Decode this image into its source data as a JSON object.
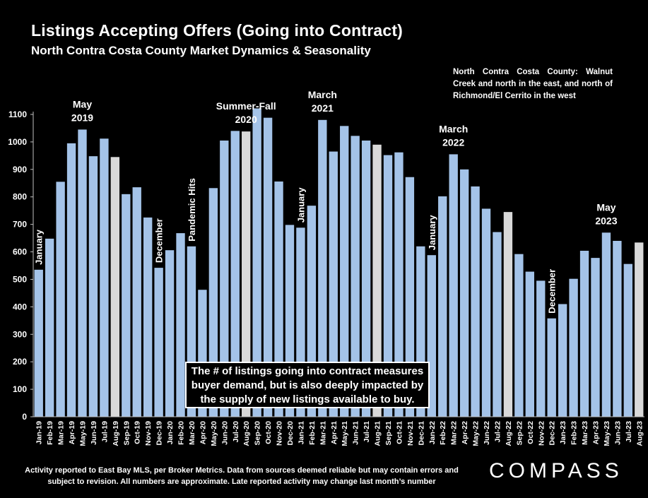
{
  "header": {
    "title": "Listings Accepting Offers (Going into Contract)",
    "subtitle": "North Contra Costa County Market Dynamics & Seasonality"
  },
  "note": "North Contra Costa County: Walnut Creek and north in the east, and north of Richmond/El Cerrito in the west",
  "callout": "The # of listings going into contract measures buyer demand, but is also deeply impacted by the supply of new listings available to buy.",
  "footer": "Activity reported to East Bay MLS, per Broker Metrics. Data from sources deemed reliable but may contain errors and subject to revision. All numbers are approximate. Late reported activity may change last month’s number",
  "logo": "COMPASS",
  "colors": {
    "bar": "#a4c3e8",
    "highlight": "#d9d9d9",
    "background": "#000000",
    "text": "#ffffff"
  },
  "chart_data": {
    "type": "bar",
    "title": "Listings Accepting Offers (Going into Contract)",
    "ylim": [
      0,
      1100
    ],
    "yticks": [
      0,
      100,
      200,
      300,
      400,
      500,
      600,
      700,
      800,
      900,
      1000,
      1100
    ],
    "grid": false,
    "categories": [
      "Jan-19",
      "Feb-19",
      "Mar-19",
      "Apr-19",
      "May-19",
      "Jun-19",
      "Jul-19",
      "Aug-19",
      "Sep-19",
      "Oct-19",
      "Nov-19",
      "Dec-19",
      "Jan-20",
      "Feb-20",
      "Mar-20",
      "Apr-20",
      "May-20",
      "Jun-20",
      "Jul-20",
      "Aug-20",
      "Sep-20",
      "Oct-20",
      "Nov-20",
      "Dec-20",
      "Jan-21",
      "Feb-21",
      "Mar-21",
      "Apr-21",
      "May-21",
      "Jun-21",
      "Jul-21",
      "Aug-21",
      "Sep-21",
      "Oct-21",
      "Nov-21",
      "Dec-21",
      "Jan-22",
      "Feb-22",
      "Mar-22",
      "Apr-22",
      "May-22",
      "Jun-22",
      "Jul-22",
      "Aug-22",
      "Sep-22",
      "Oct-22",
      "Nov-22",
      "Dec-22",
      "Jan-23",
      "Feb-23",
      "Mar-23",
      "Apr-23",
      "May-23",
      "Jun-23",
      "Jul-23",
      "Aug-23"
    ],
    "values": [
      535,
      648,
      855,
      995,
      1045,
      948,
      1012,
      945,
      810,
      835,
      725,
      542,
      606,
      668,
      620,
      462,
      832,
      1005,
      1040,
      1038,
      1122,
      1088,
      856,
      698,
      688,
      768,
      1080,
      965,
      1058,
      1022,
      1005,
      990,
      952,
      962,
      872,
      620,
      588,
      802,
      955,
      900,
      838,
      757,
      672,
      745,
      592,
      528,
      495,
      358,
      410,
      502,
      604,
      578,
      670,
      640,
      556,
      634
    ],
    "highlighted": [
      "Aug-19",
      "Aug-20",
      "Aug-21",
      "Aug-22",
      "Aug-23"
    ],
    "annotations": [
      {
        "text": "January",
        "at": "Jan-19",
        "vertical": true
      },
      {
        "text": "May\n2019",
        "at": "May-19"
      },
      {
        "text": "December",
        "at": "Dec-19",
        "vertical": true
      },
      {
        "text": "Pandemic Hits",
        "at": "Mar-20",
        "vertical": true
      },
      {
        "text": "Summer-Fall\n2020",
        "at": "Aug-20"
      },
      {
        "text": "January",
        "at": "Jan-21",
        "vertical": true
      },
      {
        "text": "March\n2021",
        "at": "Mar-21"
      },
      {
        "text": "January",
        "at": "Jan-22",
        "vertical": true
      },
      {
        "text": "March\n2022",
        "at": "Mar-22"
      },
      {
        "text": "December",
        "at": "Dec-22",
        "vertical": true
      },
      {
        "text": "May\n2023",
        "at": "May-23"
      }
    ]
  }
}
